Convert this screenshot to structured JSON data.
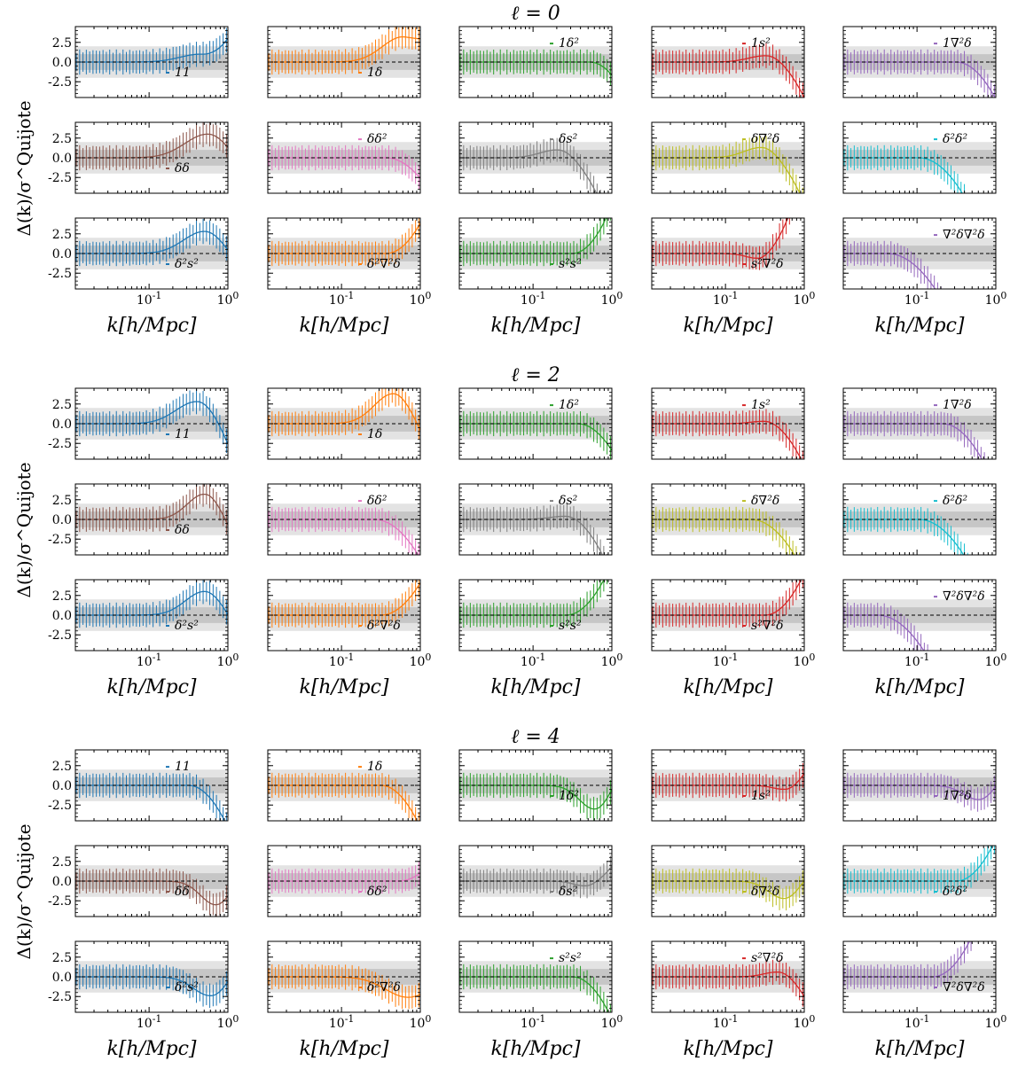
{
  "chart_data": {
    "type": "line",
    "x_log_scale": true,
    "xlim": [
      0.0116,
      1.0
    ],
    "ylim": [
      -4.5,
      4.5
    ],
    "xlabel": "k[h/Mpc]",
    "ylabel": "Δ(k)/σ^Quijote",
    "x_tick_labels": [
      "10^-1",
      "10^0"
    ],
    "y_tick_labels": [
      "2.5",
      "0.0",
      "-2.5"
    ],
    "shaded_bands": [
      1,
      2
    ],
    "reference_line_y": 0,
    "panels_per_block": 15,
    "grid_columns": 5,
    "grid_rows": 3,
    "blocks": [
      {
        "title": "ℓ = 0",
        "panels": [
          {
            "label": "11",
            "color": "#1f77b4",
            "a": 1.0,
            "c": 0.45,
            "w": 0.55,
            "dir": 1,
            "tail": 3.0
          },
          {
            "label": "1δ",
            "color": "#ff7f0e",
            "a": 3.2,
            "c": 0.6,
            "w": 0.55,
            "dir": 1,
            "tail": 2.2
          },
          {
            "label": "1δ²",
            "color": "#2ca02c",
            "a": 0.0,
            "c": 0.5,
            "w": 0.5,
            "dir": -1,
            "tail": 2.6
          },
          {
            "label": "1s²",
            "color": "#d62728",
            "a": 0.8,
            "c": 0.32,
            "w": 0.45,
            "dir": -1,
            "tail": 2.5
          },
          {
            "label": "1∇²δ",
            "color": "#9467bd",
            "a": 0.0,
            "c": 0.3,
            "w": 0.5,
            "dir": -1,
            "tail": 2.3
          },
          {
            "label": "δδ",
            "color": "#8c564b",
            "a": 3.0,
            "c": 0.55,
            "w": 0.6,
            "dir": -1,
            "tail": 1.5
          },
          {
            "label": "δδ²",
            "color": "#e377c2",
            "a": 0.0,
            "c": 0.35,
            "w": 0.5,
            "dir": -1,
            "tail": 1.7
          },
          {
            "label": "δs²",
            "color": "#7f7f7f",
            "a": 1.0,
            "c": 0.2,
            "w": 0.45,
            "dir": -1,
            "tail": 2.4
          },
          {
            "label": "δ∇²δ",
            "color": "#bcbd22",
            "a": 1.3,
            "c": 0.28,
            "w": 0.45,
            "dir": -1,
            "tail": 2.5
          },
          {
            "label": "δ²δ²",
            "color": "#17becf",
            "a": 0.0,
            "c": 0.1,
            "w": 0.5,
            "dir": -1,
            "tail": 1.8
          },
          {
            "label": "δ²s²",
            "color": "#1f77b4",
            "a": 2.8,
            "c": 0.5,
            "w": 0.55,
            "dir": -1,
            "tail": 1.6
          },
          {
            "label": "δ²∇²δ",
            "color": "#ff7f0e",
            "a": 0.0,
            "c": 0.35,
            "w": 0.5,
            "dir": 1,
            "tail": 2.5
          },
          {
            "label": "s²s²",
            "color": "#2ca02c",
            "a": 0.0,
            "c": 0.3,
            "w": 0.5,
            "dir": 1,
            "tail": 3.0
          },
          {
            "label": "s²∇²δ",
            "color": "#d62728",
            "a": -0.6,
            "c": 0.25,
            "w": 0.3,
            "dir": 1,
            "tail": 4.0
          },
          {
            "label": "∇²δ∇²δ",
            "color": "#9467bd",
            "a": 0.0,
            "c": 0.04,
            "w": 0.4,
            "dir": -1,
            "tail": 1.5
          }
        ]
      },
      {
        "title": "ℓ = 2",
        "panels": [
          {
            "label": "11",
            "color": "#1f77b4",
            "a": 2.8,
            "c": 0.4,
            "w": 0.55,
            "dir": -1,
            "tail": 3.0
          },
          {
            "label": "1δ",
            "color": "#ff7f0e",
            "a": 3.8,
            "c": 0.45,
            "w": 0.5,
            "dir": -1,
            "tail": 2.5
          },
          {
            "label": "1δ²",
            "color": "#2ca02c",
            "a": 0.0,
            "c": 0.35,
            "w": 0.5,
            "dir": -1,
            "tail": 2.2
          },
          {
            "label": "1s²",
            "color": "#d62728",
            "a": 0.3,
            "c": 0.3,
            "w": 0.35,
            "dir": -1,
            "tail": 2.6
          },
          {
            "label": "1∇²δ",
            "color": "#9467bd",
            "a": 0.0,
            "c": 0.2,
            "w": 0.45,
            "dir": -1,
            "tail": 2.2
          },
          {
            "label": "δδ",
            "color": "#8c564b",
            "a": 3.2,
            "c": 0.5,
            "w": 0.45,
            "dir": -1,
            "tail": 3.0
          },
          {
            "label": "δδ²",
            "color": "#e377c2",
            "a": 0.0,
            "c": 0.25,
            "w": 0.45,
            "dir": -1,
            "tail": 1.8
          },
          {
            "label": "δs²",
            "color": "#7f7f7f",
            "a": 0.4,
            "c": 0.25,
            "w": 0.4,
            "dir": -1,
            "tail": 2.6
          },
          {
            "label": "δ∇²δ",
            "color": "#bcbd22",
            "a": 0.0,
            "c": 0.2,
            "w": 0.45,
            "dir": -1,
            "tail": 1.8
          },
          {
            "label": "δ²δ²",
            "color": "#17becf",
            "a": 0.0,
            "c": 0.1,
            "w": 0.5,
            "dir": -1,
            "tail": 1.7
          },
          {
            "label": "δ²s²",
            "color": "#1f77b4",
            "a": 3.0,
            "c": 0.5,
            "w": 0.5,
            "dir": -1,
            "tail": 2.0
          },
          {
            "label": "δ²∇²δ",
            "color": "#ff7f0e",
            "a": 0.0,
            "c": 0.3,
            "w": 0.5,
            "dir": 1,
            "tail": 2.0
          },
          {
            "label": "s²s²",
            "color": "#2ca02c",
            "a": 0.0,
            "c": 0.25,
            "w": 0.5,
            "dir": 1,
            "tail": 2.4
          },
          {
            "label": "s²∇²δ",
            "color": "#d62728",
            "a": 0.0,
            "c": 0.3,
            "w": 0.5,
            "dir": 1,
            "tail": 2.6
          },
          {
            "label": "∇²δ∇²δ",
            "color": "#9467bd",
            "a": 0.0,
            "c": 0.03,
            "w": 0.4,
            "dir": -1,
            "tail": 1.6
          }
        ]
      },
      {
        "title": "ℓ = 4",
        "panels": [
          {
            "label": "11",
            "color": "#1f77b4",
            "a": 0.0,
            "c": 0.3,
            "w": 0.5,
            "dir": -1,
            "tail": 2.6
          },
          {
            "label": "1δ",
            "color": "#ff7f0e",
            "a": 0.0,
            "c": 0.3,
            "w": 0.5,
            "dir": -1,
            "tail": 2.6
          },
          {
            "label": "1δ²",
            "color": "#2ca02c",
            "a": -3.0,
            "c": 0.6,
            "w": 0.4,
            "dir": 1,
            "tail": 3.0
          },
          {
            "label": "1s²",
            "color": "#d62728",
            "a": -0.5,
            "c": 0.55,
            "w": 0.3,
            "dir": 1,
            "tail": 3.5
          },
          {
            "label": "1∇²δ",
            "color": "#9467bd",
            "a": -1.8,
            "c": 0.6,
            "w": 0.4,
            "dir": 1,
            "tail": 2.5
          },
          {
            "label": "δδ",
            "color": "#8c564b",
            "a": -3.0,
            "c": 0.7,
            "w": 0.4,
            "dir": 1,
            "tail": 2.0
          },
          {
            "label": "δδ²",
            "color": "#e377c2",
            "a": 0.0,
            "c": 0.5,
            "w": 0.4,
            "dir": 1,
            "tail": 1.6
          },
          {
            "label": "δs²",
            "color": "#7f7f7f",
            "a": -0.6,
            "c": 0.45,
            "w": 0.3,
            "dir": 1,
            "tail": 2.2
          },
          {
            "label": "δ∇²δ",
            "color": "#bcbd22",
            "a": -2.2,
            "c": 0.55,
            "w": 0.4,
            "dir": 1,
            "tail": 2.0
          },
          {
            "label": "δ²δ²",
            "color": "#17becf",
            "a": 0.0,
            "c": 0.3,
            "w": 0.5,
            "dir": 1,
            "tail": 2.6
          },
          {
            "label": "δ²s²",
            "color": "#1f77b4",
            "a": -2.4,
            "c": 0.6,
            "w": 0.45,
            "dir": 1,
            "tail": 2.5
          },
          {
            "label": "δ²∇²δ",
            "color": "#ff7f0e",
            "a": -2.6,
            "c": 0.7,
            "w": 0.6,
            "dir": 1,
            "tail": 0.0
          },
          {
            "label": "s²s²",
            "color": "#2ca02c",
            "a": 0.0,
            "c": 0.3,
            "w": 0.5,
            "dir": -1,
            "tail": 2.6
          },
          {
            "label": "s²∇²δ",
            "color": "#d62728",
            "a": 0.6,
            "c": 0.45,
            "w": 0.35,
            "dir": -1,
            "tail": 3.0
          },
          {
            "label": "∇²δ∇²δ",
            "color": "#9467bd",
            "a": 0.0,
            "c": 0.15,
            "w": 0.5,
            "dir": 1,
            "tail": 2.5
          }
        ]
      }
    ]
  }
}
